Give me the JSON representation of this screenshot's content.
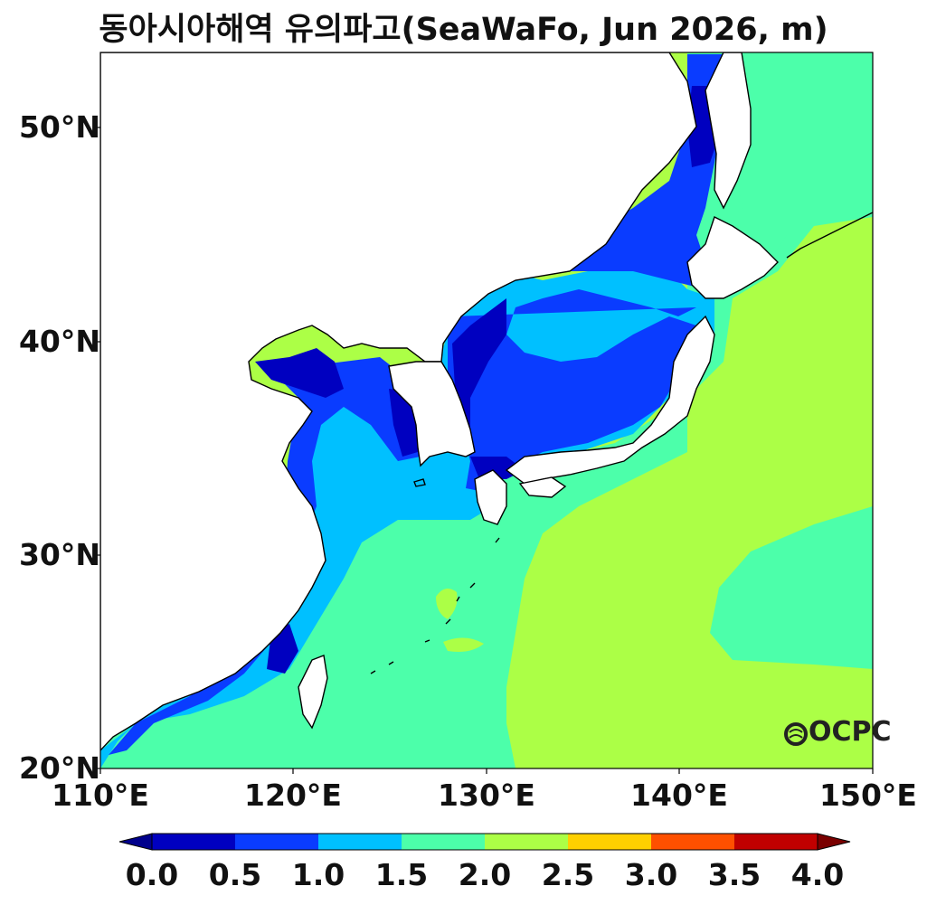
{
  "title": "동아시아해역 유의파고(SeaWaFo, Jun 2026, m)",
  "logo_text": "OCPC",
  "y_axis": {
    "ticks": [
      "20°N",
      "30°N",
      "40°N",
      "50°N"
    ]
  },
  "x_axis": {
    "ticks": [
      "110°E",
      "120°E",
      "130°E",
      "140°E",
      "150°E"
    ]
  },
  "colorbar": {
    "labels": [
      "0.0",
      "0.5",
      "1.0",
      "1.5",
      "2.0",
      "2.5",
      "3.0",
      "3.5",
      "4.0"
    ],
    "colors": [
      "#0000c0",
      "#0a3cff",
      "#00c0ff",
      "#4cffaa",
      "#acff46",
      "#ffd000",
      "#ff5000",
      "#c00000"
    ],
    "under_color": "#00008c",
    "over_color": "#7a0000"
  },
  "map": {
    "lon_range": [
      110,
      150
    ],
    "lat_range": [
      20,
      53.5
    ],
    "land_color": "#ffffff",
    "coast_color": "#000000"
  }
}
